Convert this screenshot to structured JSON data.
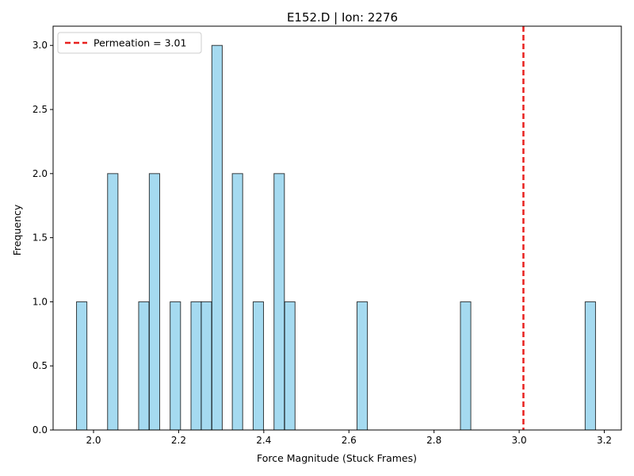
{
  "chart_data": {
    "type": "bar",
    "title": "E152.D | Ion: 2276",
    "xlabel": "Force Magnitude (Stuck Frames)",
    "ylabel": "Frequency",
    "xlim": [
      1.905,
      3.24
    ],
    "ylim": [
      0,
      3.15
    ],
    "xticks": [
      "2.0",
      "2.2",
      "2.4",
      "2.6",
      "2.8",
      "3.0",
      "3.2"
    ],
    "yticks": [
      "0.0",
      "0.5",
      "1.0",
      "1.5",
      "2.0",
      "2.5",
      "3.0"
    ],
    "bin_width": 0.0244,
    "bins": [
      {
        "x0": 1.96,
        "value": 1
      },
      {
        "x0": 2.033,
        "value": 2
      },
      {
        "x0": 2.106,
        "value": 1
      },
      {
        "x0": 2.131,
        "value": 2
      },
      {
        "x0": 2.18,
        "value": 1
      },
      {
        "x0": 2.229,
        "value": 1
      },
      {
        "x0": 2.253,
        "value": 1
      },
      {
        "x0": 2.278,
        "value": 3
      },
      {
        "x0": 2.326,
        "value": 2
      },
      {
        "x0": 2.375,
        "value": 1
      },
      {
        "x0": 2.424,
        "value": 2
      },
      {
        "x0": 2.449,
        "value": 1
      },
      {
        "x0": 2.619,
        "value": 1
      },
      {
        "x0": 2.862,
        "value": 1
      },
      {
        "x0": 3.155,
        "value": 1
      }
    ],
    "bar_color": "#87CEEB",
    "bar_edge_color": "#000000",
    "reference_line": {
      "x": 3.01,
      "label": "Permeation = 3.01",
      "color": "#E8201E",
      "style": "dashed"
    },
    "legend": {
      "position": "top-left",
      "entries": [
        "Permeation = 3.01"
      ]
    },
    "grid": false
  }
}
